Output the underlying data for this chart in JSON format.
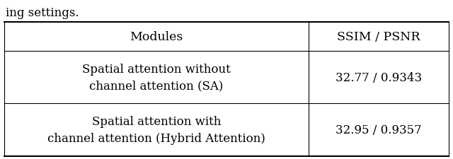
{
  "caption": "ing settings.",
  "col_headers": [
    "Modules",
    "SSIM / PSNR"
  ],
  "rows": [
    [
      "Spatial attention without\nchannel attention (SA)",
      "32.77 / 0.9343"
    ],
    [
      "Spatial attention with\nchannel attention (Hybrid Attention)",
      "32.95 / 0.9357"
    ]
  ],
  "col_split": 0.685,
  "header_fontsize": 12.5,
  "cell_fontsize": 12.0,
  "caption_fontsize": 12.0,
  "bg_color": "#ffffff",
  "line_color": "#000000",
  "text_color": "#000000",
  "fig_width": 6.4,
  "fig_height": 2.26
}
